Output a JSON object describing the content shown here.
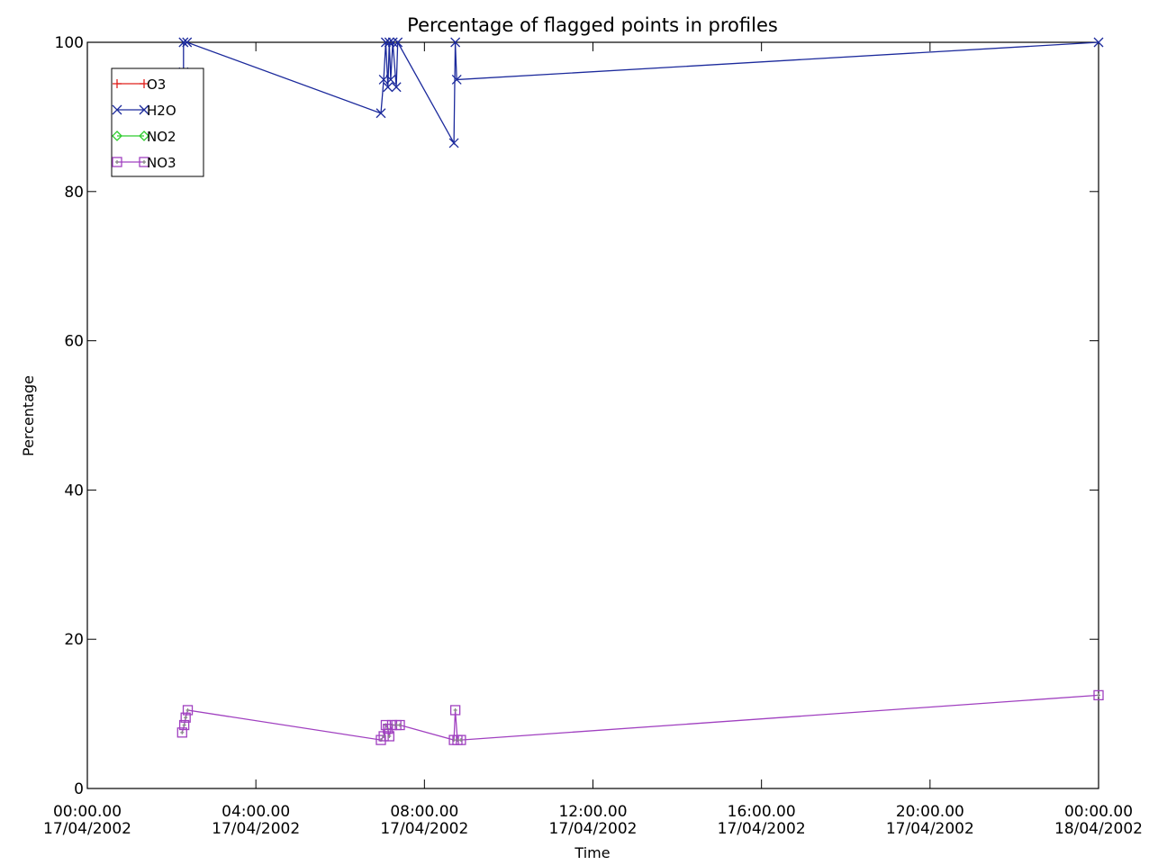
{
  "chart_data": {
    "type": "line",
    "title": "Percentage of flagged points in profiles",
    "xlabel": "Time",
    "ylabel": "Percentage",
    "xlim": [
      "2002-04-17 00:00",
      "2002-04-18 00:00"
    ],
    "ylim": [
      0,
      100
    ],
    "grid": false,
    "legend_position": "top-left",
    "x_ticks": [
      {
        "time": "2002-04-17 00:00",
        "line1": "00:00.00",
        "line2": "17/04/2002"
      },
      {
        "time": "2002-04-17 04:00",
        "line1": "04:00.00",
        "line2": "17/04/2002"
      },
      {
        "time": "2002-04-17 08:00",
        "line1": "08:00.00",
        "line2": "17/04/2002"
      },
      {
        "time": "2002-04-17 12:00",
        "line1": "12:00.00",
        "line2": "17/04/2002"
      },
      {
        "time": "2002-04-17 16:00",
        "line1": "16:00.00",
        "line2": "17/04/2002"
      },
      {
        "time": "2002-04-17 20:00",
        "line1": "20:00.00",
        "line2": "17/04/2002"
      },
      {
        "time": "2002-04-18 00:00",
        "line1": "00:00.00",
        "line2": "18/04/2002"
      }
    ],
    "y_ticks": [
      0,
      20,
      40,
      60,
      80,
      100
    ],
    "series": [
      {
        "name": "O3",
        "color": "#e0201c",
        "marker": "plus",
        "points": []
      },
      {
        "name": "H2O",
        "color": "#1c2a9c",
        "marker": "cross",
        "points": [
          [
            "2002-04-17 02:17",
            96.0
          ],
          [
            "2002-04-17 02:17",
            100
          ],
          [
            "2002-04-17 02:22",
            100
          ],
          [
            "2002-04-17 06:58",
            90.5
          ],
          [
            "2002-04-17 07:02",
            95.0
          ],
          [
            "2002-04-17 07:05",
            100
          ],
          [
            "2002-04-17 07:08",
            94.0
          ],
          [
            "2002-04-17 07:10",
            100
          ],
          [
            "2002-04-17 07:12",
            95.0
          ],
          [
            "2002-04-17 07:15",
            100
          ],
          [
            "2002-04-17 07:20",
            94.0
          ],
          [
            "2002-04-17 07:22",
            100
          ],
          [
            "2002-04-17 08:42",
            86.5
          ],
          [
            "2002-04-17 08:44",
            100
          ],
          [
            "2002-04-17 08:46",
            95.0
          ],
          [
            "2002-04-18 00:00",
            100
          ]
        ]
      },
      {
        "name": "NO2",
        "color": "#2ecc2e",
        "marker": "diamond",
        "points": []
      },
      {
        "name": "NO3",
        "color": "#a040c0",
        "marker": "square",
        "points": [
          [
            "2002-04-17 02:15",
            7.5
          ],
          [
            "2002-04-17 02:18",
            8.5
          ],
          [
            "2002-04-17 02:20",
            9.5
          ],
          [
            "2002-04-17 02:23",
            10.5
          ],
          [
            "2002-04-17 06:58",
            6.5
          ],
          [
            "2002-04-17 07:02",
            7.0
          ],
          [
            "2002-04-17 07:05",
            8.5
          ],
          [
            "2002-04-17 07:08",
            8.0
          ],
          [
            "2002-04-17 07:10",
            7.0
          ],
          [
            "2002-04-17 07:14",
            8.5
          ],
          [
            "2002-04-17 07:20",
            8.5
          ],
          [
            "2002-04-17 07:25",
            8.5
          ],
          [
            "2002-04-17 08:42",
            6.5
          ],
          [
            "2002-04-17 08:44",
            10.5
          ],
          [
            "2002-04-17 08:47",
            6.5
          ],
          [
            "2002-04-17 08:52",
            6.5
          ],
          [
            "2002-04-18 00:00",
            12.5
          ]
        ]
      }
    ]
  }
}
